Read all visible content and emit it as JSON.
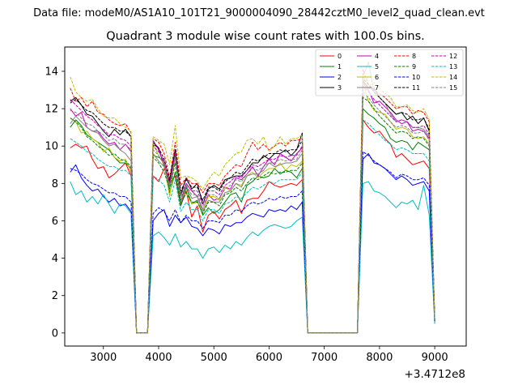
{
  "header": "Data file: modeM0/AS1A10_101T21_9000004090_28442cztM0_level2_quad_clean.evt",
  "chart_data": {
    "type": "line",
    "title": "Quadrant 3 module wise count rates with 100.0s bins.",
    "xlabel": "",
    "ylabel": "",
    "x_offset_label": "+3.4712e8",
    "xlim": [
      2300,
      9570
    ],
    "ylim": [
      -0.7,
      15.3
    ],
    "xticks": [
      3000,
      4000,
      5000,
      6000,
      7000,
      8000,
      9000
    ],
    "yticks": [
      0,
      2,
      4,
      6,
      8,
      10,
      12,
      14
    ],
    "x_start": 2400,
    "x_step": 100,
    "legend": {
      "position": "top-right",
      "columns": 4
    },
    "series": [
      {
        "name": "0",
        "color": "#ff0000",
        "dash": false,
        "values": [
          9.9,
          10.1,
          9.9,
          10.0,
          9.3,
          8.8,
          8.9,
          8.3,
          8.5,
          8.8,
          9.1,
          8.4,
          0,
          0,
          0,
          8.4,
          8.1,
          8.8,
          8.0,
          8.4,
          6.8,
          7.6,
          6.2,
          6.8,
          5.4,
          6.3,
          6.5,
          6.1,
          6.6,
          6.8,
          7.1,
          6.4,
          7.1,
          7.2,
          7.2,
          7.6,
          8.1,
          7.9,
          7.8,
          7.9,
          8.0,
          7.9,
          8.2,
          0,
          0,
          0,
          0,
          0,
          0,
          0,
          0,
          0,
          0,
          11.4,
          11.0,
          10.7,
          10.8,
          10.4,
          10.1,
          9.4,
          9.6,
          9.3,
          9.0,
          9.1,
          9.2,
          8.8,
          0.6
        ]
      },
      {
        "name": "1",
        "color": "#008000",
        "dash": false,
        "values": [
          11.0,
          11.4,
          11.1,
          10.6,
          10.4,
          10.2,
          10.0,
          9.8,
          9.4,
          9.1,
          9.1,
          8.8,
          0,
          0,
          0,
          9.5,
          9.4,
          9.2,
          7.5,
          8.6,
          6.8,
          7.8,
          6.9,
          7.1,
          6.3,
          6.7,
          6.4,
          6.6,
          7.0,
          7.4,
          7.5,
          7.0,
          7.9,
          8.1,
          8.4,
          8.3,
          8.4,
          8.8,
          8.5,
          8.7,
          8.6,
          8.3,
          8.8,
          0,
          0,
          0,
          0,
          0,
          0,
          0,
          0,
          0,
          0,
          12.0,
          11.7,
          11.5,
          11.2,
          11.0,
          10.4,
          10.2,
          10.3,
          10.2,
          9.8,
          10.2,
          10.0,
          9.8,
          0.7
        ]
      },
      {
        "name": "2",
        "color": "#0000ff",
        "dash": false,
        "values": [
          8.6,
          9.0,
          8.3,
          7.9,
          7.6,
          7.7,
          7.3,
          7.0,
          7.2,
          6.8,
          6.9,
          6.5,
          0,
          0,
          0,
          6.0,
          6.4,
          6.6,
          5.7,
          6.3,
          5.9,
          6.2,
          5.7,
          5.6,
          5.2,
          5.6,
          5.5,
          5.3,
          5.8,
          5.7,
          5.9,
          5.9,
          6.2,
          6.4,
          6.3,
          6.2,
          6.6,
          6.5,
          6.6,
          6.5,
          6.8,
          6.6,
          7.0,
          0,
          0,
          0,
          0,
          0,
          0,
          0,
          0,
          0,
          0,
          9.3,
          9.6,
          9.1,
          9.0,
          8.8,
          8.5,
          8.2,
          8.4,
          8.2,
          7.9,
          8.0,
          8.1,
          7.6,
          0.5
        ]
      },
      {
        "name": "3",
        "color": "#000000",
        "dash": false,
        "values": [
          12.4,
          12.6,
          12.2,
          11.7,
          11.6,
          11.2,
          10.8,
          10.5,
          10.9,
          10.6,
          10.9,
          10.5,
          0,
          0,
          0,
          10.2,
          9.9,
          8.9,
          8.1,
          9.8,
          7.4,
          8.3,
          7.7,
          8.0,
          6.9,
          7.7,
          7.9,
          7.7,
          8.2,
          8.3,
          8.4,
          8.4,
          8.7,
          9.1,
          9.1,
          9.5,
          9.3,
          9.6,
          9.6,
          9.8,
          9.5,
          9.8,
          10.7,
          0,
          0,
          0,
          0,
          0,
          0,
          0,
          0,
          0,
          0,
          13.5,
          13.1,
          13.1,
          12.6,
          12.3,
          12.0,
          11.7,
          11.8,
          11.4,
          11.6,
          11.2,
          11.5,
          10.8,
          0.7
        ]
      },
      {
        "name": "4",
        "color": "#bf00bf",
        "dash": false,
        "values": [
          12.0,
          11.6,
          11.8,
          11.0,
          10.8,
          10.8,
          10.4,
          10.1,
          10.2,
          9.8,
          10.1,
          9.7,
          0,
          0,
          0,
          10.3,
          9.8,
          9.0,
          7.8,
          9.6,
          7.1,
          8.0,
          7.6,
          7.3,
          6.6,
          7.4,
          7.1,
          7.2,
          7.8,
          7.7,
          8.3,
          8.2,
          8.5,
          8.9,
          8.4,
          8.9,
          9.3,
          9.0,
          9.6,
          9.4,
          9.2,
          9.6,
          9.9,
          0,
          0,
          0,
          0,
          0,
          0,
          0,
          0,
          0,
          0,
          13.4,
          13.0,
          12.3,
          12.4,
          12.1,
          11.8,
          11.4,
          11.2,
          11.3,
          10.8,
          10.9,
          10.8,
          10.4,
          0.7
        ]
      },
      {
        "name": "5",
        "color": "#00bfbf",
        "dash": false,
        "values": [
          8.1,
          7.4,
          7.6,
          7.0,
          7.3,
          6.9,
          7.4,
          6.9,
          6.4,
          6.9,
          6.8,
          6.4,
          0,
          0,
          0,
          5.2,
          5.4,
          5.1,
          4.7,
          5.3,
          4.6,
          4.9,
          4.5,
          4.5,
          4.0,
          4.5,
          4.6,
          4.3,
          4.7,
          4.5,
          4.9,
          4.7,
          5.1,
          5.4,
          5.2,
          5.5,
          5.7,
          5.8,
          5.7,
          5.6,
          5.7,
          6.0,
          6.2,
          0,
          0,
          0,
          0,
          0,
          0,
          0,
          0,
          0,
          0,
          8.0,
          8.1,
          7.6,
          7.5,
          7.3,
          7.0,
          6.7,
          7.0,
          6.9,
          7.1,
          6.6,
          7.9,
          6.3,
          0.5
        ]
      },
      {
        "name": "6",
        "color": "#bfbf00",
        "dash": false,
        "values": [
          11.5,
          11.3,
          10.7,
          10.8,
          10.4,
          10.2,
          9.7,
          9.9,
          9.4,
          9.2,
          9.3,
          8.6,
          0,
          0,
          0,
          10.1,
          9.5,
          9.0,
          7.3,
          9.4,
          7.2,
          7.5,
          6.9,
          7.0,
          6.6,
          7.3,
          7.3,
          7.1,
          7.8,
          7.6,
          8.0,
          7.9,
          8.4,
          8.6,
          8.3,
          8.6,
          8.8,
          8.8,
          9.1,
          8.7,
          9.0,
          8.9,
          9.2,
          0,
          0,
          0,
          0,
          0,
          0,
          0,
          0,
          0,
          0,
          13.4,
          12.4,
          11.9,
          11.8,
          11.7,
          11.3,
          10.9,
          11.0,
          10.9,
          10.5,
          10.4,
          10.5,
          10.1,
          0.6
        ]
      },
      {
        "name": "7",
        "color": "#808080",
        "dash": false,
        "values": [
          11.2,
          11.6,
          11.3,
          11.0,
          10.8,
          10.7,
          10.3,
          10.0,
          10.1,
          9.8,
          9.6,
          9.2,
          0,
          0,
          0,
          9.6,
          9.2,
          8.9,
          7.8,
          9.5,
          6.9,
          7.9,
          7.2,
          7.3,
          6.5,
          7.1,
          7.0,
          7.0,
          7.5,
          7.6,
          8.0,
          7.8,
          8.4,
          8.5,
          8.5,
          8.7,
          9.1,
          8.9,
          9.0,
          9.1,
          9.1,
          9.2,
          9.6,
          0,
          0,
          0,
          0,
          0,
          0,
          0,
          0,
          0,
          0,
          13.7,
          14.5,
          12.9,
          12.6,
          12.3,
          11.7,
          11.3,
          11.4,
          11.3,
          11.0,
          11.0,
          10.9,
          10.5,
          0.7
        ]
      },
      {
        "name": "8",
        "color": "#ff0000",
        "dash": true,
        "values": [
          13.1,
          12.4,
          12.6,
          12.1,
          12.4,
          11.8,
          11.7,
          11.4,
          11.2,
          11.1,
          11.2,
          10.7,
          0,
          0,
          0,
          10.4,
          10.2,
          9.6,
          8.3,
          10.2,
          7.9,
          8.3,
          8.0,
          8.0,
          7.5,
          8.0,
          8.0,
          7.9,
          8.4,
          8.7,
          9.0,
          8.9,
          9.6,
          10.2,
          9.8,
          10.1,
          9.8,
          10.0,
          10.2,
          10.0,
          10.3,
          10.3,
          10.4,
          0,
          0,
          0,
          0,
          0,
          0,
          0,
          0,
          0,
          0,
          14.1,
          13.3,
          13.0,
          12.8,
          12.6,
          12.3,
          12.0,
          12.1,
          12.1,
          11.7,
          11.9,
          11.8,
          11.3,
          0.8
        ]
      },
      {
        "name": "9",
        "color": "#008000",
        "dash": true,
        "values": [
          11.5,
          11.3,
          11.0,
          10.5,
          10.3,
          10.0,
          9.8,
          9.5,
          9.6,
          9.3,
          9.2,
          8.9,
          0,
          0,
          0,
          9.4,
          9.1,
          8.6,
          7.7,
          9.1,
          6.9,
          7.5,
          7.0,
          7.0,
          6.4,
          7.0,
          7.0,
          6.8,
          7.4,
          7.5,
          7.8,
          7.6,
          8.0,
          8.3,
          8.2,
          8.4,
          8.6,
          8.5,
          8.6,
          8.6,
          8.7,
          8.7,
          9.1,
          0,
          0,
          0,
          0,
          0,
          0,
          0,
          0,
          0,
          0,
          12.6,
          12.4,
          12.0,
          11.6,
          11.3,
          11.0,
          10.7,
          10.8,
          10.7,
          10.4,
          10.5,
          10.4,
          10.0,
          0.7
        ]
      },
      {
        "name": "10",
        "color": "#0000ff",
        "dash": true,
        "values": [
          8.8,
          8.7,
          8.5,
          8.2,
          8.0,
          7.9,
          7.7,
          7.5,
          7.5,
          7.3,
          7.3,
          7.0,
          0,
          0,
          0,
          6.4,
          6.7,
          6.5,
          6.0,
          6.6,
          5.9,
          6.3,
          6.0,
          6.0,
          5.6,
          6.0,
          6.0,
          5.9,
          6.3,
          6.3,
          6.6,
          6.5,
          6.8,
          7.0,
          6.9,
          7.0,
          7.2,
          7.1,
          7.3,
          7.2,
          7.3,
          7.3,
          7.6,
          0,
          0,
          0,
          0,
          0,
          0,
          0,
          0,
          0,
          0,
          9.7,
          9.5,
          9.2,
          9.0,
          8.8,
          8.6,
          8.3,
          8.5,
          8.4,
          8.2,
          8.2,
          8.3,
          7.9,
          0.6
        ]
      },
      {
        "name": "11",
        "color": "#000000",
        "dash": true,
        "values": [
          12.3,
          12.5,
          12.2,
          11.9,
          11.8,
          11.5,
          11.2,
          11.0,
          11.0,
          10.8,
          10.8,
          10.5,
          0,
          0,
          0,
          10.1,
          9.9,
          9.3,
          8.2,
          9.8,
          7.6,
          8.2,
          7.8,
          7.8,
          7.1,
          7.8,
          7.8,
          7.6,
          8.1,
          8.3,
          8.6,
          8.5,
          8.9,
          9.3,
          9.2,
          9.4,
          9.6,
          9.6,
          9.8,
          9.7,
          9.8,
          9.8,
          10.3,
          0,
          0,
          0,
          0,
          0,
          0,
          0,
          0,
          0,
          0,
          13.6,
          13.3,
          12.9,
          12.6,
          12.3,
          12.0,
          11.7,
          11.8,
          11.7,
          11.4,
          11.4,
          11.5,
          10.9,
          0.7
        ]
      },
      {
        "name": "12",
        "color": "#bf00bf",
        "dash": true,
        "values": [
          12.5,
          12.2,
          11.9,
          11.6,
          11.4,
          11.1,
          10.9,
          10.6,
          10.6,
          10.4,
          10.3,
          10.0,
          0,
          0,
          0,
          10.0,
          9.7,
          9.2,
          8.0,
          9.6,
          7.4,
          8.0,
          7.6,
          7.6,
          6.9,
          7.6,
          7.6,
          7.4,
          7.9,
          8.1,
          8.4,
          8.3,
          8.7,
          9.0,
          8.9,
          9.1,
          9.3,
          9.3,
          9.5,
          9.4,
          9.5,
          9.5,
          10.0,
          0,
          0,
          0,
          0,
          0,
          0,
          0,
          0,
          0,
          0,
          13.2,
          12.9,
          12.5,
          12.2,
          11.9,
          11.6,
          11.3,
          11.4,
          11.3,
          11.0,
          11.0,
          11.1,
          10.6,
          0.7
        ]
      },
      {
        "name": "13",
        "color": "#00bfbf",
        "dash": true,
        "values": [
          10.4,
          10.2,
          10.0,
          9.7,
          9.6,
          9.3,
          9.1,
          8.9,
          8.9,
          8.7,
          8.7,
          8.4,
          0,
          0,
          0,
          8.4,
          8.2,
          7.9,
          7.0,
          8.2,
          6.5,
          7.0,
          6.6,
          6.6,
          6.0,
          6.6,
          6.6,
          6.4,
          6.9,
          7.0,
          7.3,
          7.2,
          7.5,
          7.8,
          7.7,
          7.9,
          8.1,
          8.0,
          8.2,
          8.2,
          8.2,
          8.2,
          8.6,
          0,
          0,
          0,
          0,
          0,
          0,
          0,
          0,
          0,
          0,
          11.4,
          11.2,
          10.9,
          10.6,
          10.3,
          10.1,
          9.8,
          9.9,
          9.8,
          9.6,
          9.6,
          9.6,
          9.2,
          0.6
        ]
      },
      {
        "name": "14",
        "color": "#bfbf00",
        "dash": true,
        "values": [
          13.7,
          12.9,
          12.6,
          12.4,
          12.5,
          12.0,
          11.6,
          11.5,
          11.5,
          11.2,
          11.0,
          10.8,
          0,
          0,
          0,
          10.5,
          10.3,
          10.1,
          9.0,
          11.1,
          8.3,
          8.4,
          8.3,
          8.1,
          7.7,
          8.2,
          8.6,
          8.4,
          9.0,
          9.3,
          9.6,
          9.7,
          10.3,
          10.4,
          10.1,
          10.5,
          9.7,
          10.0,
          10.5,
          10.1,
          10.4,
          10.4,
          10.6,
          0,
          0,
          0,
          0,
          0,
          0,
          0,
          0,
          0,
          0,
          13.8,
          13.2,
          13.4,
          13.1,
          12.8,
          12.6,
          12.1,
          12.1,
          12.2,
          11.9,
          11.8,
          12.0,
          11.4,
          0.8
        ]
      },
      {
        "name": "15",
        "color": "#808080",
        "dash": true,
        "values": [
          11.9,
          11.8,
          11.5,
          11.2,
          11.1,
          10.8,
          10.6,
          10.3,
          10.4,
          10.1,
          10.1,
          9.8,
          0,
          0,
          0,
          9.8,
          9.5,
          9.0,
          7.9,
          9.4,
          7.3,
          7.9,
          7.4,
          7.4,
          6.8,
          7.4,
          7.4,
          7.2,
          7.7,
          7.9,
          8.2,
          8.1,
          8.5,
          8.8,
          8.7,
          8.9,
          9.1,
          9.1,
          9.3,
          9.2,
          9.3,
          9.3,
          9.8,
          0,
          0,
          0,
          0,
          0,
          0,
          0,
          0,
          0,
          0,
          12.9,
          12.6,
          12.2,
          11.9,
          11.6,
          11.3,
          11.0,
          11.1,
          11.0,
          10.7,
          10.7,
          10.8,
          10.3,
          0.7
        ]
      }
    ]
  }
}
